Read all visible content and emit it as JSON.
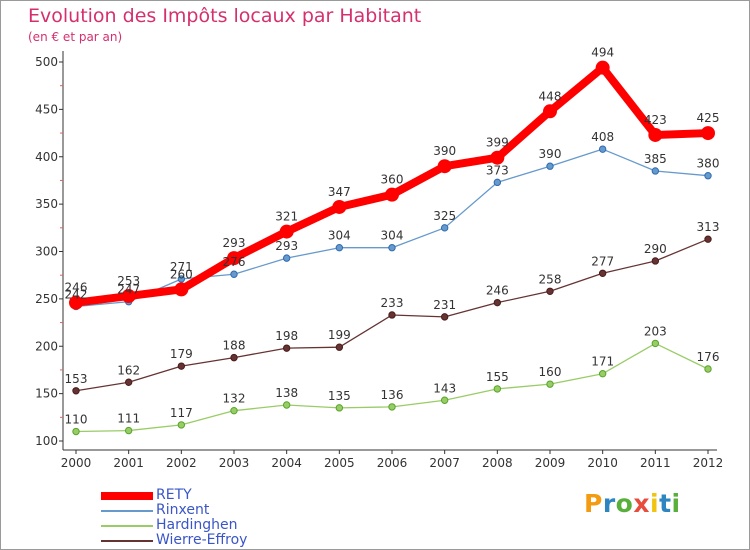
{
  "chart_data": {
    "type": "line",
    "title": "Evolution des Impôts locaux par Habitant",
    "subtitle": "(en € et par an)",
    "categories": [
      "2000",
      "2001",
      "2002",
      "2003",
      "2004",
      "2005",
      "2006",
      "2007",
      "2008",
      "2009",
      "2010",
      "2011",
      "2012"
    ],
    "ylim": [
      100,
      500
    ],
    "yticks": [
      "100",
      "150",
      "200",
      "250",
      "300",
      "350",
      "400",
      "450",
      "500"
    ],
    "grid": false,
    "legend_position": "bottom-left",
    "series": [
      {
        "name": "RETY",
        "color": "#ff0000",
        "values": [
          246,
          253,
          260,
          293,
          321,
          347,
          360,
          390,
          399,
          448,
          494,
          423,
          425
        ]
      },
      {
        "name": "Rinxent",
        "color": "#6699cc",
        "values": [
          242,
          247,
          271,
          276,
          293,
          304,
          304,
          325,
          373,
          390,
          408,
          385,
          380
        ]
      },
      {
        "name": "Hardinghen",
        "color": "#99cc66",
        "values": [
          110,
          111,
          117,
          132,
          138,
          135,
          136,
          143,
          155,
          160,
          171,
          203,
          176
        ]
      },
      {
        "name": "Wierre-Effroy",
        "color": "#663333",
        "values": [
          153,
          162,
          179,
          188,
          198,
          199,
          233,
          231,
          246,
          258,
          277,
          290,
          313
        ]
      }
    ]
  },
  "logo": {
    "letters": [
      "P",
      "r",
      "o",
      "x",
      "i",
      "t",
      "i"
    ],
    "colors": [
      "#f39c12",
      "#2e86c1",
      "#58b03b",
      "#e74c3c",
      "#f1c40f",
      "#2e86c1",
      "#58b03b"
    ]
  }
}
